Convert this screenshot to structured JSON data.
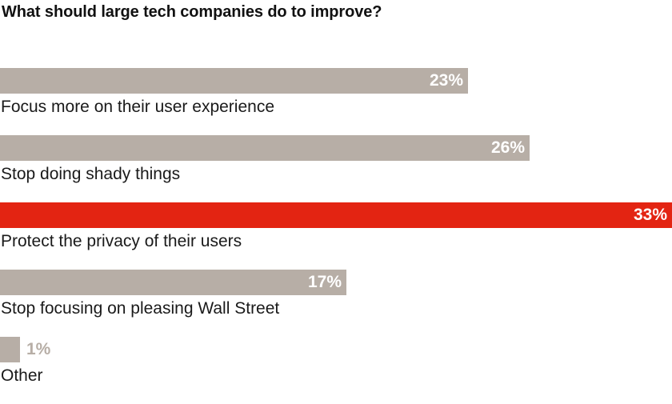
{
  "chart_data": {
    "type": "bar",
    "orientation": "horizontal",
    "title": "What should large tech companies do to improve?",
    "categories": [
      "Focus more on their user experience",
      "Stop doing shady things",
      "Protect the privacy of their users",
      "Stop focusing on pleasing Wall Street",
      "Other"
    ],
    "values": [
      23,
      26,
      33,
      17,
      1
    ],
    "value_labels": [
      "23%",
      "26%",
      "33%",
      "17%",
      "1%"
    ],
    "xlim": [
      0,
      33
    ],
    "highlight_index": 2,
    "colors": {
      "default": "#b7aea6",
      "highlight": "#e32412",
      "label": "#ffffff"
    },
    "grid": false
  }
}
